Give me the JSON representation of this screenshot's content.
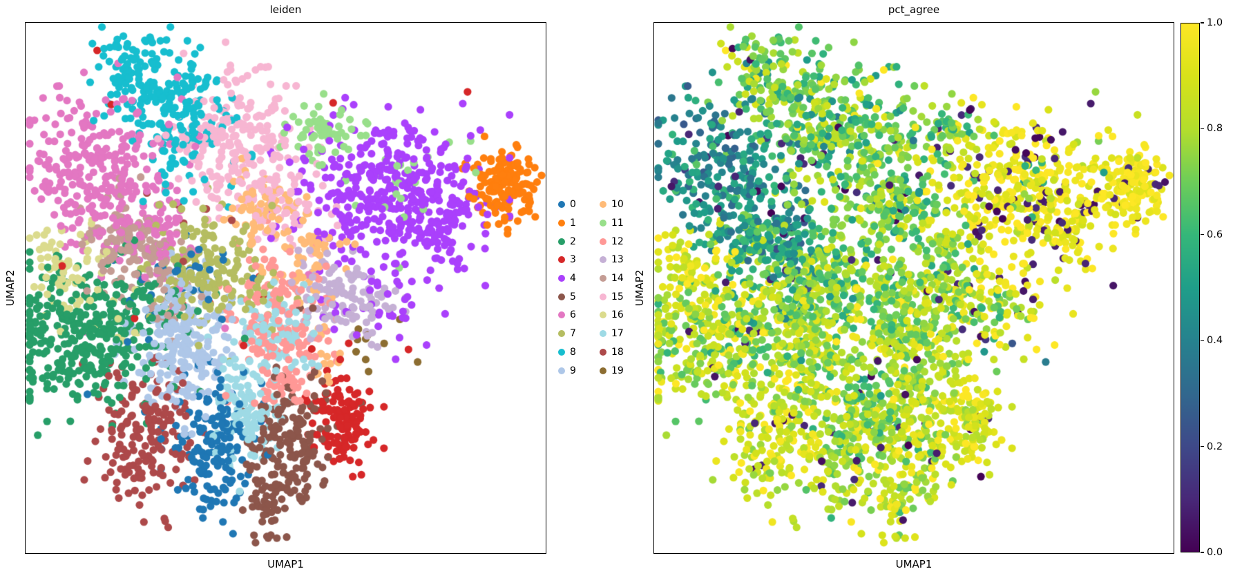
{
  "chart_data": {
    "type": "scatter",
    "embedding": "UMAP",
    "point_radius_px": 5.6,
    "panels": [
      {
        "title": "leiden",
        "xlabel": "UMAP1",
        "ylabel": "UMAP2",
        "color_by": "leiden cluster",
        "legend_position": "right of axes, two columns",
        "xticks": [],
        "yticks": []
      },
      {
        "title": "pct_agree",
        "xlabel": "UMAP1",
        "ylabel": "UMAP2",
        "color_by": "pct_agree",
        "colormap": "viridis",
        "colorbar": {
          "min": 0.0,
          "max": 1.0,
          "ticks": [
            "1.0",
            "0.8",
            "0.6",
            "0.4",
            "0.2",
            "0.0"
          ]
        },
        "xticks": [],
        "yticks": []
      }
    ],
    "viridis_anchors": [
      [
        0.0,
        "#440154"
      ],
      [
        0.1,
        "#482878"
      ],
      [
        0.2,
        "#3e4989"
      ],
      [
        0.3,
        "#31688e"
      ],
      [
        0.4,
        "#26828e"
      ],
      [
        0.5,
        "#1f9e89"
      ],
      [
        0.6,
        "#35b779"
      ],
      [
        0.7,
        "#6dcd59"
      ],
      [
        0.8,
        "#b4de2c"
      ],
      [
        0.9,
        "#d8e219"
      ],
      [
        1.0,
        "#fde725"
      ]
    ],
    "clusters": [
      {
        "id": "0",
        "color": "#1f77b4",
        "pct_agree": {
          "mean": 0.8,
          "std": 0.1,
          "low_frac": 0.03
        },
        "blobs": [
          {
            "cx": 0.363,
            "cy": 0.796,
            "sx": 0.038,
            "sy": 0.062,
            "n": 150
          },
          {
            "cx": 0.303,
            "cy": 0.465,
            "sx": 0.05,
            "sy": 0.045,
            "n": 30
          },
          {
            "cx": 0.3,
            "cy": 0.62,
            "sx": 0.1,
            "sy": 0.1,
            "n": 12
          }
        ]
      },
      {
        "id": "1",
        "color": "#ff7f0e",
        "pct_agree": {
          "mean": 0.97,
          "std": 0.04,
          "low_frac": 0.04
        },
        "blobs": [
          {
            "cx": 0.928,
            "cy": 0.306,
            "sx": 0.03,
            "sy": 0.034,
            "n": 150
          },
          {
            "cx": 0.88,
            "cy": 0.28,
            "sx": 0.03,
            "sy": 0.03,
            "n": 8
          }
        ]
      },
      {
        "id": "2",
        "color": "#279e68",
        "pct_agree": {
          "mean": 0.8,
          "std": 0.12,
          "low_frac": 0.02
        },
        "blobs": [
          {
            "cx": 0.101,
            "cy": 0.597,
            "sx": 0.068,
            "sy": 0.068,
            "n": 290
          },
          {
            "cx": 0.197,
            "cy": 0.54,
            "sx": 0.045,
            "sy": 0.04,
            "n": 60
          },
          {
            "cx": 0.25,
            "cy": 0.62,
            "sx": 0.1,
            "sy": 0.08,
            "n": 15
          }
        ]
      },
      {
        "id": "3",
        "color": "#d62728",
        "pct_agree": {
          "mean": 0.9,
          "std": 0.08,
          "low_frac": 0.03
        },
        "blobs": [
          {
            "cx": 0.608,
            "cy": 0.742,
            "sx": 0.03,
            "sy": 0.047,
            "n": 120
          },
          {
            "cx": 0.38,
            "cy": 0.42,
            "sx": 0.22,
            "sy": 0.18,
            "n": 14
          }
        ]
      },
      {
        "id": "4",
        "color": "#aa40fc",
        "pct_agree": {
          "mean": 0.95,
          "std": 0.06,
          "low_frac": 0.16
        },
        "blobs": [
          {
            "cx": 0.701,
            "cy": 0.312,
            "sx": 0.085,
            "sy": 0.068,
            "n": 350
          },
          {
            "cx": 0.807,
            "cy": 0.387,
            "sx": 0.045,
            "sy": 0.045,
            "n": 70
          },
          {
            "cx": 0.674,
            "cy": 0.517,
            "sx": 0.055,
            "sy": 0.05,
            "n": 45
          }
        ]
      },
      {
        "id": "5",
        "color": "#8c564b",
        "pct_agree": {
          "mean": 0.85,
          "std": 0.1,
          "low_frac": 0.03
        },
        "blobs": [
          {
            "cx": 0.509,
            "cy": 0.79,
            "sx": 0.037,
            "sy": 0.052,
            "n": 130
          },
          {
            "cx": 0.472,
            "cy": 0.896,
            "sx": 0.022,
            "sy": 0.042,
            "n": 60
          },
          {
            "cx": 0.55,
            "cy": 0.7,
            "sx": 0.06,
            "sy": 0.06,
            "n": 15
          }
        ]
      },
      {
        "id": "6",
        "color": "#e377c2",
        "pct_agree": {
          "mean": 0.45,
          "std": 0.1,
          "low_frac": 0.04
        },
        "blobs": [
          {
            "cx": 0.14,
            "cy": 0.279,
            "sx": 0.072,
            "sy": 0.075,
            "n": 270
          },
          {
            "cx": 0.241,
            "cy": 0.387,
            "sx": 0.05,
            "sy": 0.045,
            "n": 80
          },
          {
            "cx": 0.35,
            "cy": 0.45,
            "sx": 0.15,
            "sy": 0.15,
            "n": 12
          }
        ]
      },
      {
        "id": "7",
        "color": "#b5bd61",
        "pct_agree": {
          "mean": 0.7,
          "std": 0.12,
          "low_frac": 0.02
        },
        "blobs": [
          {
            "cx": 0.344,
            "cy": 0.46,
            "sx": 0.052,
            "sy": 0.055,
            "n": 150
          },
          {
            "cx": 0.42,
            "cy": 0.52,
            "sx": 0.06,
            "sy": 0.05,
            "n": 20
          }
        ]
      },
      {
        "id": "8",
        "color": "#17becf",
        "pct_agree": {
          "mean": 0.72,
          "std": 0.12,
          "low_frac": 0.03
        },
        "blobs": [
          {
            "cx": 0.224,
            "cy": 0.104,
            "sx": 0.048,
            "sy": 0.046,
            "n": 130
          },
          {
            "cx": 0.319,
            "cy": 0.177,
            "sx": 0.042,
            "sy": 0.048,
            "n": 100
          },
          {
            "cx": 0.3,
            "cy": 0.28,
            "sx": 0.05,
            "sy": 0.05,
            "n": 20
          }
        ]
      },
      {
        "id": "9",
        "color": "#aec7e8",
        "pct_agree": {
          "mean": 0.78,
          "std": 0.12,
          "low_frac": 0.02
        },
        "blobs": [
          {
            "cx": 0.299,
            "cy": 0.608,
            "sx": 0.048,
            "sy": 0.062,
            "n": 210
          },
          {
            "cx": 0.34,
            "cy": 0.52,
            "sx": 0.04,
            "sy": 0.04,
            "n": 25
          }
        ]
      },
      {
        "id": "10",
        "color": "#ffbb78",
        "pct_agree": {
          "mean": 0.75,
          "std": 0.12,
          "low_frac": 0.03
        },
        "blobs": [
          {
            "cx": 0.458,
            "cy": 0.364,
            "sx": 0.04,
            "sy": 0.04,
            "n": 70
          },
          {
            "cx": 0.538,
            "cy": 0.442,
            "sx": 0.038,
            "sy": 0.045,
            "n": 45
          },
          {
            "cx": 0.572,
            "cy": 0.634,
            "sx": 0.018,
            "sy": 0.028,
            "n": 14
          }
        ]
      },
      {
        "id": "11",
        "color": "#98df8a",
        "pct_agree": {
          "mean": 0.7,
          "std": 0.12,
          "low_frac": 0.02
        },
        "blobs": [
          {
            "cx": 0.568,
            "cy": 0.208,
            "sx": 0.032,
            "sy": 0.028,
            "n": 60
          },
          {
            "cx": 0.7,
            "cy": 0.3,
            "sx": 0.07,
            "sy": 0.06,
            "n": 25
          }
        ]
      },
      {
        "id": "12",
        "color": "#ff9896",
        "pct_agree": {
          "mean": 0.82,
          "std": 0.1,
          "low_frac": 0.03
        },
        "blobs": [
          {
            "cx": 0.485,
            "cy": 0.558,
            "sx": 0.042,
            "sy": 0.058,
            "n": 140
          },
          {
            "cx": 0.498,
            "cy": 0.686,
            "sx": 0.028,
            "sy": 0.026,
            "n": 30
          },
          {
            "cx": 0.46,
            "cy": 0.46,
            "sx": 0.05,
            "sy": 0.04,
            "n": 20
          }
        ]
      },
      {
        "id": "13",
        "color": "#c5b0d5",
        "pct_agree": {
          "mean": 0.8,
          "std": 0.12,
          "low_frac": 0.06
        },
        "blobs": [
          {
            "cx": 0.601,
            "cy": 0.513,
            "sx": 0.048,
            "sy": 0.04,
            "n": 110
          },
          {
            "cx": 0.66,
            "cy": 0.56,
            "sx": 0.04,
            "sy": 0.04,
            "n": 12
          }
        ]
      },
      {
        "id": "14",
        "color": "#c49c94",
        "pct_agree": {
          "mean": 0.6,
          "std": 0.12,
          "low_frac": 0.03
        },
        "blobs": [
          {
            "cx": 0.199,
            "cy": 0.408,
            "sx": 0.045,
            "sy": 0.048,
            "n": 100
          },
          {
            "cx": 0.26,
            "cy": 0.504,
            "sx": 0.038,
            "sy": 0.042,
            "n": 45
          }
        ]
      },
      {
        "id": "15",
        "color": "#f7b6d2",
        "pct_agree": {
          "mean": 0.68,
          "std": 0.12,
          "low_frac": 0.04
        },
        "blobs": [
          {
            "cx": 0.411,
            "cy": 0.239,
            "sx": 0.058,
            "sy": 0.075,
            "n": 240
          },
          {
            "cx": 0.511,
            "cy": 0.348,
            "sx": 0.04,
            "sy": 0.048,
            "n": 50
          }
        ]
      },
      {
        "id": "16",
        "color": "#dbdb8d",
        "pct_agree": {
          "mean": 0.92,
          "std": 0.07,
          "low_frac": 0.02
        },
        "blobs": [
          {
            "cx": 0.079,
            "cy": 0.468,
            "sx": 0.032,
            "sy": 0.045,
            "n": 70
          },
          {
            "cx": 0.2,
            "cy": 0.56,
            "sx": 0.04,
            "sy": 0.03,
            "n": 12
          }
        ]
      },
      {
        "id": "17",
        "color": "#9edae5",
        "pct_agree": {
          "mean": 0.72,
          "std": 0.1,
          "low_frac": 0.02
        },
        "blobs": [
          {
            "cx": 0.472,
            "cy": 0.592,
            "sx": 0.045,
            "sy": 0.042,
            "n": 85
          },
          {
            "cx": 0.419,
            "cy": 0.735,
            "sx": 0.032,
            "sy": 0.055,
            "n": 95
          }
        ]
      },
      {
        "id": "18",
        "color": "#ad494a",
        "pct_agree": {
          "mean": 0.88,
          "std": 0.09,
          "low_frac": 0.03
        },
        "blobs": [
          {
            "cx": 0.225,
            "cy": 0.784,
            "sx": 0.045,
            "sy": 0.062,
            "n": 170
          },
          {
            "cx": 0.31,
            "cy": 0.35,
            "sx": 0.04,
            "sy": 0.05,
            "n": 6
          }
        ]
      },
      {
        "id": "19",
        "color": "#8c6d31",
        "pct_agree": {
          "mean": 0.5,
          "std": 0.25,
          "low_frac": 0.1
        },
        "blobs": [
          {
            "cx": 0.667,
            "cy": 0.623,
            "sx": 0.045,
            "sy": 0.042,
            "n": 10
          }
        ]
      }
    ]
  }
}
